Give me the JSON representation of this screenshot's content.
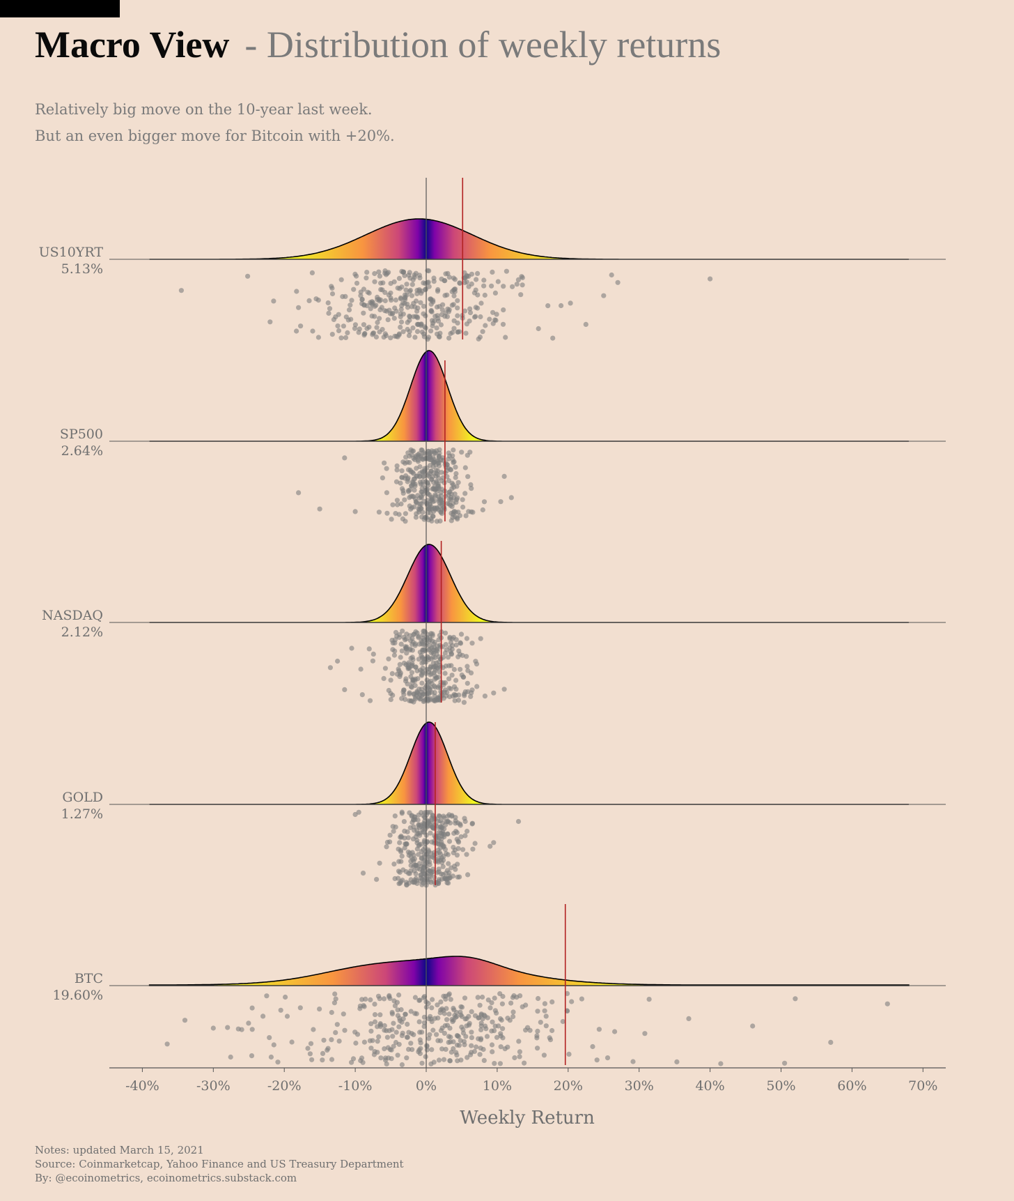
{
  "header": {
    "title_bold": "Macro View",
    "title_light": "- Distribution of weekly returns",
    "subtitle_lines": [
      "Relatively big move on the 10-year last week.",
      "But an even bigger move for Bitcoin with +20%."
    ]
  },
  "footer": {
    "notes": "Notes: updated March 15, 2021",
    "source": "Source: Coinmarketcap, Yahoo Finance and US Treasury Department",
    "by": "By: @ecoinometrics, ecoinometrics.substack.com"
  },
  "colors": {
    "background": "#f2dfd0",
    "marker_line": "#b22222",
    "points": "#7f7f7f",
    "density_gradient": [
      "#f0f921",
      "#f89540",
      "#cc4778",
      "#7e03a8",
      "#0d0887"
    ]
  },
  "chart_data": {
    "type": "ridgeline-density-with-jitter",
    "xlabel": "Weekly Return",
    "xlim": [
      -42,
      72
    ],
    "xticks": [
      -40,
      -30,
      -20,
      -10,
      0,
      10,
      20,
      30,
      40,
      50,
      60,
      70
    ],
    "xtick_labels": [
      "-40%",
      "-30%",
      "-20%",
      "-10%",
      "0%",
      "10%",
      "20%",
      "30%",
      "40%",
      "50%",
      "60%",
      "70%"
    ],
    "reference_line_x": 0,
    "series": [
      {
        "name": "US10YRT",
        "last_week_label": "5.13%",
        "last_week_value": 5.13,
        "density_sd": 7.5,
        "density_range": [
          -39,
          68
        ],
        "sample_extremes": [
          -34.5,
          -22,
          -21.5,
          -18,
          -16,
          19,
          22.5,
          25,
          27,
          40
        ]
      },
      {
        "name": "SP500",
        "last_week_label": "2.64%",
        "last_week_value": 2.64,
        "density_sd": 2.6,
        "density_range": [
          -39,
          68
        ],
        "sample_extremes": [
          -18,
          -15,
          -11.5,
          -10,
          10.5,
          11,
          12
        ]
      },
      {
        "name": "NASDAQ",
        "last_week_label": "2.12%",
        "last_week_value": 2.12,
        "density_sd": 3.0,
        "density_range": [
          -39,
          68
        ],
        "sample_extremes": [
          -13.5,
          -12.5,
          -11.5,
          -10.5,
          -9,
          9.5,
          11
        ]
      },
      {
        "name": "GOLD",
        "last_week_label": "1.27%",
        "last_week_value": 1.27,
        "density_sd": 2.6,
        "density_range": [
          -39,
          68
        ],
        "sample_extremes": [
          -10,
          -9.5,
          9,
          9.5,
          13
        ]
      },
      {
        "name": "BTC",
        "last_week_label": "19.60%",
        "last_week_value": 19.6,
        "density_sd": 11,
        "density_range": [
          -39,
          68
        ],
        "sample_extremes": [
          -36.5,
          -34,
          -30,
          -28,
          -26,
          -23,
          37,
          41.5,
          46,
          50.5,
          52,
          57,
          65
        ]
      }
    ]
  }
}
